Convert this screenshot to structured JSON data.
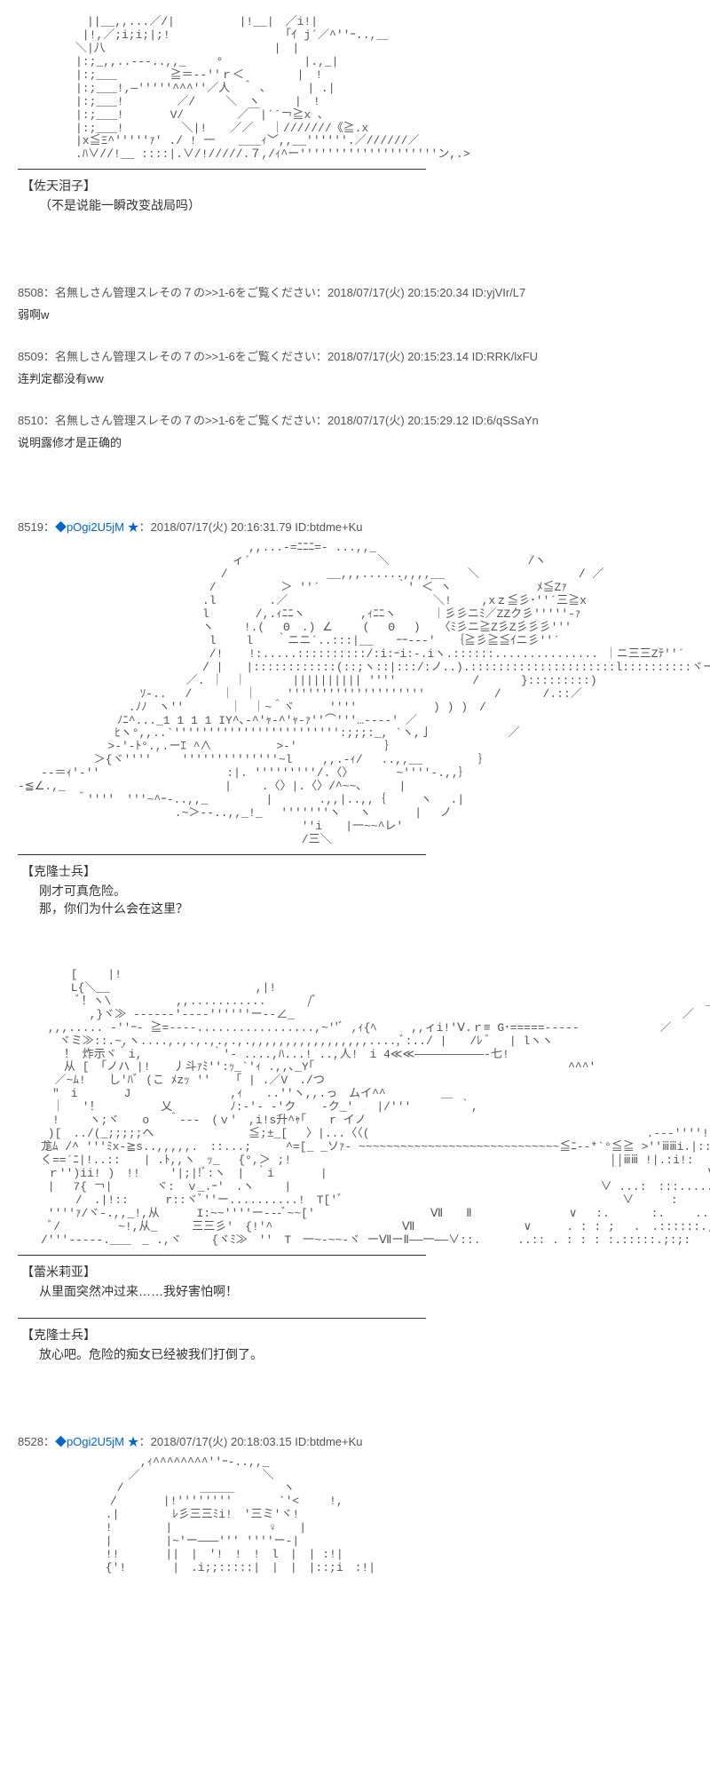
{
  "aa_top_fragment": "　　　　　　||__,,...／/|　　　　　 |!__|　／i!|\n　　　　　 |!,／;i;i;|;!　　　　　　　　　　｢ｲ j´／^''ｰ..,＿\n　　　　　＼|八　　　　　　　　　　　　　　 |　|\n　　　　　|:;_,,..---..,,_ 　　°　　　　　　　|.,_|\n　　　　　|:;___　　　　 ≧＝--''ｒ＜　　　　 |　!\n　　　　　|:;___!,―'''''^^^''／人　＾ ､　　　 | .|\n　　　　　|:;___!　　　　 ／/　　 ＼　ヽ　　　|　!\n　　　　　|:;___!　　　　V/　　　　 ／￣|´´￢≧x ､\n　　　　　|:;___!　　　　　＼|!　　／／　 ｜///////《≧.x\n　　　　　|x≦Ξ^'''''ｧ' ./ ! 一　　＿＿ｨ﹀,,__''''''.／//////／\n　　　　　.ﾊ∨//!__ ::::|.∨/!/////.７,/ｨ^ー''''''''''''''''''''ン,.>",
  "speaker1": "【佐天泪子】",
  "line1": "（不是说能一瞬改变战局吗）",
  "posts": [
    {
      "no": "8508",
      "name": "名無しさん管理スレその７の>>1-6をご覧ください",
      "date": "2018/07/17(火) 20:15:20.34",
      "id": "ID:yjVIr/L7",
      "body": "弱啊w"
    },
    {
      "no": "8509",
      "name": "名無しさん管理スレその７の>>1-6をご覧ください",
      "date": "2018/07/17(火) 20:15:23.14",
      "id": "ID:RRK/lxFU",
      "body": "连判定都没有ww"
    },
    {
      "no": "8510",
      "name": "名無しさん管理スレその７の>>1-6をご覧ください",
      "date": "2018/07/17(火) 20:15:29.12",
      "id": "ID:6/qSSaYn",
      "body": "说明露修才是正确的"
    }
  ],
  "post8519": {
    "no": "8519",
    "trip": "◆pOgi2U5jM",
    "star": "★",
    "date": "2018/07/17(火) 20:16:31.79",
    "id": "ID:btdme+Ku"
  },
  "aa_clone": "　　　　　　　　　　　　　　　　　　　　,,...-=ﾆﾆﾆ=- ...,,_\n　　　　　　　　　　　　　　　　　　 ィ´　　　　　　　　　　　＼　　　　　　　　　　　　/ヽ\n　　　　　　　　　　　　　　　　　 /　　　　　　　　 __,,,......,,,,__　　＼　　　　　　　　 / ／\n　　　　　　　　　　　　　　　　 /　　　　　 ＞ ''´　　　　　　 ｀' ＜ ヽ　　 　 　 　 ﾒ≦Zｧ\n　　　　　　　　　　　　　　　　.l　　　　 .／　　　　　　　　　　　　 ＼!　　 ,xｚ≦彡･''´三≧x　\n　　　　　　　　　　　　　　　　l　　　　/,.ｨﾆﾆヽ　 　 　 ,ｨﾆﾆヽ　 　 ｜彡彡ニﾐ／ZZク彡'''''‐ｧ\n　　　　　　　　　　　　　　　　ヽ　　 !.(　 Θ　.) ∠　　 (　 Θ　 )　 〈ﾐ彡ニ≧Z彡Z彡彡彡''′\n　　　　　　　　　　　　　　　　 l　　 l　　｀ニニ´..:::|__　　ｰｰ--‐'　　｛≧彡≧≦ｲニ彡''´\n　　　　　　　　　　　　　　　　 /! 　 !:.....::::::::::/:i:ｰi:-.iヽ.::::::............... ｜ニ三三Zﾃ''´\n　　　　　　　　　　　　　　　　/ |　　|::::::::::::(::;ヽ::|:::/:ノ..).:::::::::::::::::::::l::::::::::ヾー-..\n　　　　　　　　　　　　　　 ／. ｜　｜　　　　|||||||||| ''''　　　　　　 /　　　 }:::::::::)\n　　　　　　　　　　 ｿ-..　 /　　 ｜　｜　　 ''''''''''''''''''''　　　　　　/　　　 /.::／\n　　　　　　　　　 .ﾉﾉ　ヽ''　　　　｜　｜~＾ヾ　　　''''　　　　　　 ) ) )　/\n　　　　　　　　 ﾉﾆ^..._1 1 1 1 IY^､-^'ｬ-^'ｬ-ｧ''⌒'''…‐---' ／\n　　　 　 　 　 ﾋヽ°,,..`'''''''''''''''''''''''':;;;:_, `ヽ,亅　　　　　　 ／\n　　　　 　 　 >-'-ﾄ°.,.ーｴ ^∧　　　　　 >-'  　 　 　 　 ｝\n　　　　　　 ＞{ヾ''''　　 ''''''''''''''~l　　 ,,.-ｨ/　 ..,,__　 　 　 ｝\n　　-‐＝ｨ'-''　　　　　　　　　　　:|. '''''''''/.〈〉　　 　 ~''''-.,,｝\n-≦∠.,_　　　　　　　　　　 　 　 |　　 .〈〉|.〈〉/^~~､　 　 |\n　　　　　＾''''　'''~^ｰ-..,,_　　　　　|　　　　.,,|..,,｛　　　ヽ　 .|\n　　　　　　　　　　　　　 .~＞--..,,_!_　 '''''''ヽ　 ヽ 　 　 | 　ノ\n　　　　　　　　　　　　　　　　　　　　　　　　 ''i　　|一~~^レ'\n　　　　　　　　　　　　　　　　　　　　　　　　 /三＼",
  "speaker2": "【克隆士兵】",
  "line2a": "刚才可真危险。",
  "line2b": "那，你们为什么会在这里？",
  "aa_remilia": "　　　　 [　　 |!\n　　　　 L{＼__　　　　　　　　　　　　 ,|!　\n　　　　　ﾞ！ヽ\\　　　　　 ,,...........　　　 /ﾞ　　　　　　　　　　　　　　　　　　　　　　　　　　　　　　　　　 ＿ﾐ\n　　　　 　 ,}ヾ≫ ------'----''''''ー‐-∠_　　　 　　　　　　　　　　　　　　　　　　　　　　　　　　　　　　／\n　　 ,,,..... -''ｰ- ≧=----.................,~''ﾞ ,ｨ{ﾍ　　　,,ィi!'Ⅴ.ｒ≡ G･=====-----　　　　　　　／\n　　 　ヾミ≫::.~,ヽ....,.,.,.,.,.,.,,,,,,,,,,,,,,,,,....,ﾞ:../ |　　/ﾚ ﾞ 　| lヽヽ　　　　　　　　　 　 　 　 　 　 ／\n　　　　！ 炸示ヾ｀i,　　　　　　｀'- ....,ﾊ...! ..,人!　i 4≪≪――――――――――‐七!\n　　　　从 [　｢ノハ |!　　丿斗ｧﾐ'':ｯ_`'ｨ .,,､_Y｢　　　　　　　　　　　　　　　　　　　　　　^^^'\n　 　 ／~ﾑ!　　し′ﾊﾞ (こ ﾒzｯ '' 　 ｢ | .／V　./つ\n　　　″　i　　　　J　　　　　　　　 ,ｨ　　..''ヽ,,.っ　ムイ^^　 　 　 ＿\n　　　｜　 '！　　　 　 乂　　　　　ﾉ:-'- -'ク 　 -ク_'　　|/'''　　 　 ｀,\n　　　!　　 ヽ;ヾ　　o　 ＾--‐　(ｖ'　,i!s升^ｬ｢　　r イノ\n　　 )[　../(_;;;;;ヘ　　　　　　 　 ≦;±_[ 　〉|...〈〈(　　　　　　　　　　　　　　　　　　　　　　　　.--‐''''!!!ii!!ii从\n　　尨ﾑ /^ '''ﾐx-≧s..,,,,,.　::...;　　　^=[_ _ソｧ- ~~~~~~~~~~~~~~~~~~~~~~~~~~~~~≦ﾆ--*`°≦≧ >''ⅲⅲi.|::ii\n　　く==´ﾆ|!..::　　| .ﾄ,,ヽ　ｯ_　 {°,＞ ;!　　　　　　　　　　　　　　　　　　　　　　　　　　　 ││ⅲⅲ !|.:i!:\n　 　ｒ'')ii! )　!!　　 '|;|!ﾞ:ヽ　|　｀i　　　　|　　 　 　 　 　 　 　 　 　 　 　 　 　 　 　 　 　 　 　 　 Ⅷⅲ.:\n　　 |　 7{ ￢| 　 　 ヾ:　ｖ_.ｰ'　.ヽ　　 |　　　　　　　　　　　　　　　　　　　　　　　 　 　 ∨ ...:　:::........　...:::|::\n　　　　　/　.|!::　 　 r::ヾﾞ''ー..........!　T['ﾞ　　　　　　　　　　　　　　　　　　　　　　 　 ∨　 　 :　　 :: .. . ........:!\n　　 ''''ｧ/ヾ-.,,_!,从　 　 I:~~''''ー---ﾞ~~['　　　　　　　　　　Ⅶ　　Ⅱ　　 　 　 　 　∨　 :.　　　 :.　　 .. .. .. ..::.\n　　 ﾞ/　　　　　~!,从_　　　三三彡'　{!'^　　　　　　　　　 　 Ⅶ　　　　 　 　 　 ∨　　　. : : ;　 .　.::::::.;:\n　　/'''-----.___　_ .,ヾ　　 {ヾﾐ≫　''　T　一~‐~~‐ヾ ーⅦーⅡ――一――∨::.　 　 ..:: . : : : :.:::::.;:;:",
  "speaker3": "【蕾米莉亚】",
  "line3": "从里面突然冲过来……我好害怕啊！",
  "speaker4": "【克隆士兵】",
  "line4": "放心吧。危险的痴女已经被我们打倒了。",
  "post8528": {
    "no": "8528",
    "trip": "◆pOgi2U5jM",
    "star": "★",
    "date": "2018/07/17(火) 20:18:03.15",
    "id": "ID:btdme+Ku"
  },
  "aa_bottom": "　　　　　　　　　　 ,ｨ^^^^^^^^''ｰ-..,,_\n　　　　　　　　　 ／　　　　　　　　　　 ＼\n　　　　　　　　 /　　　　　　 ＿＿＿　　 　 ヽ\n　　　　　　　　/　　　　|!''''''''　　　　`'<　　 !,\n　　　　　　　 .|　　　　 ﾚ彡三三ﾐi!　'三ミ'ヾ!\n　　　　　　　 !　　　　 |　　 　 　 　 　♀　　|\n　　　　　　　 |　　　　 |~'ー―――''' ''''ー-|\n　　　　　　　 !!　　　　||　|　'!　!　!　l　|　| :!|\n　　　　　　　 {'!　　　　|　.i;;:::::|　|　|　|::;i　:!|"
}
